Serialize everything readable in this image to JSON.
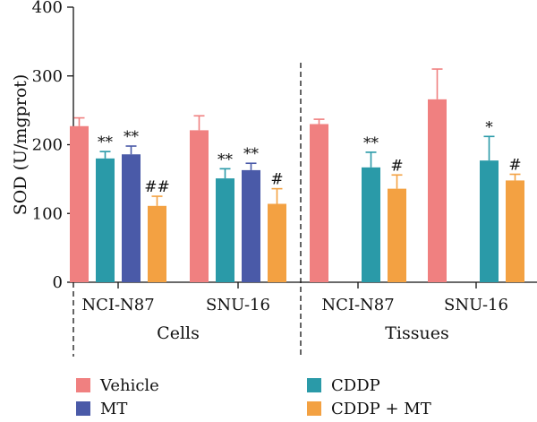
{
  "chart_data": {
    "type": "bar",
    "ylabel": "SOD (U/mgprot)",
    "ylim": [
      0,
      400
    ],
    "yticks": [
      "0",
      "100",
      "200",
      "300",
      "400"
    ],
    "grid": false,
    "legend_position": "bottom",
    "series": [
      {
        "name": "Vehicle",
        "color": "#f08080"
      },
      {
        "name": "MT",
        "color": "#4a5aa8"
      },
      {
        "name": "CDDP",
        "color": "#2a9aa8"
      },
      {
        "name": "CDDP + MT",
        "color": "#f3a142"
      }
    ],
    "groups": [
      {
        "label": "Cells",
        "subgroups": [
          {
            "label": "NCI-N87",
            "bars": [
              {
                "series": "Vehicle",
                "value": 227,
                "error": 12,
                "annotation": ""
              },
              {
                "series": "CDDP",
                "value": 180,
                "error": 10,
                "annotation": "**"
              },
              {
                "series": "MT",
                "value": 186,
                "error": 12,
                "annotation": "**"
              },
              {
                "series": "CDDP + MT",
                "value": 111,
                "error": 14,
                "annotation": "##"
              }
            ]
          },
          {
            "label": "SNU-16",
            "bars": [
              {
                "series": "Vehicle",
                "value": 221,
                "error": 21,
                "annotation": ""
              },
              {
                "series": "CDDP",
                "value": 151,
                "error": 14,
                "annotation": "**"
              },
              {
                "series": "MT",
                "value": 163,
                "error": 10,
                "annotation": "**"
              },
              {
                "series": "CDDP + MT",
                "value": 114,
                "error": 22,
                "annotation": "#"
              }
            ]
          }
        ]
      },
      {
        "label": "Tissues",
        "subgroups": [
          {
            "label": "NCI-N87",
            "bars": [
              {
                "series": "Vehicle",
                "value": 230,
                "error": 7,
                "annotation": ""
              },
              {
                "series": "CDDP",
                "value": 167,
                "error": 22,
                "annotation": "**"
              },
              {
                "series": "CDDP + MT",
                "value": 136,
                "error": 20,
                "annotation": "#"
              }
            ]
          },
          {
            "label": "SNU-16",
            "bars": [
              {
                "series": "Vehicle",
                "value": 266,
                "error": 44,
                "annotation": ""
              },
              {
                "series": "CDDP",
                "value": 177,
                "error": 35,
                "annotation": "*"
              },
              {
                "series": "CDDP + MT",
                "value": 148,
                "error": 9,
                "annotation": "#"
              }
            ]
          }
        ]
      }
    ]
  }
}
